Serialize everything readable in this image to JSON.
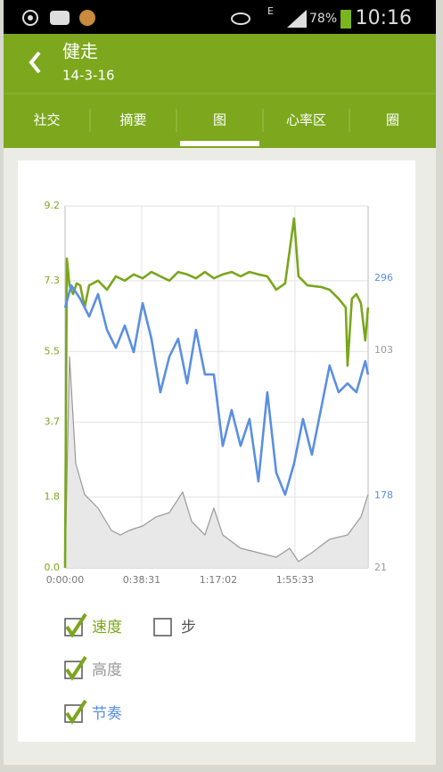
{
  "status_bar": {
    "network": "E",
    "battery": "78%",
    "time": "10:16"
  },
  "header": {
    "title": "健走",
    "subtitle": "14-3-16"
  },
  "tabs": {
    "items": [
      "社交",
      "摘要",
      "图",
      "心率区",
      "圈"
    ],
    "selected": 2
  },
  "chart_data": {
    "type": "line",
    "xlim": [
      0,
      9140
    ],
    "xticks": [
      {
        "value": 0,
        "label": "0:00:00"
      },
      {
        "value": 2311,
        "label": "0:38:31"
      },
      {
        "value": 4622,
        "label": "1:17:02"
      },
      {
        "value": 6933,
        "label": "1:55:33"
      }
    ],
    "ylim": [
      0,
      9.2
    ],
    "yticks": [
      {
        "value": 0,
        "label": "0.0"
      },
      1.8,
      3.7,
      5.5,
      7.3,
      9.2
    ],
    "y2lim": [
      138.8,
      335.2
    ],
    "y2ticks": [
      178,
      296
    ],
    "y3lim": [
      21,
      157.4
    ],
    "y3ticks": [
      21,
      103
    ],
    "grid": true,
    "series": [
      {
        "name": "速度",
        "color": "#7aa61c",
        "checked": true,
        "x": [
          0,
          54,
          134,
          242,
          349,
          457,
          591,
          726,
          994,
          1263,
          1532,
          1800,
          2069,
          2338,
          2606,
          2875,
          3144,
          3412,
          3681,
          3950,
          4219,
          4487,
          4756,
          5025,
          5293,
          5562,
          5831,
          6099,
          6368,
          6637,
          6905,
          7040,
          7309,
          7712,
          7980,
          8249,
          8464,
          8518,
          8652,
          8786,
          8921,
          9055,
          9136
        ],
        "values": [
          0,
          7.86,
          7.18,
          6.96,
          7.23,
          7.18,
          6.62,
          7.18,
          7.3,
          7.07,
          7.41,
          7.3,
          7.46,
          7.36,
          7.52,
          7.41,
          7.3,
          7.52,
          7.46,
          7.36,
          7.52,
          7.36,
          7.46,
          7.52,
          7.41,
          7.52,
          7.46,
          7.41,
          7.07,
          7.23,
          8.88,
          7.41,
          7.18,
          7.14,
          7.07,
          6.84,
          6.62,
          5.14,
          6.84,
          6.96,
          6.73,
          5.78,
          6.62
        ]
      },
      {
        "name": "步",
        "checked": false
      },
      {
        "name": "高度",
        "color": "#999999",
        "checked": true,
        "axis": "y3",
        "fill": "#e8e8e8",
        "x": [
          0,
          134,
          322,
          591,
          994,
          1397,
          1666,
          1934,
          2338,
          2741,
          3144,
          3547,
          3816,
          4219,
          4487,
          4756,
          5293,
          5831,
          6368,
          6771,
          7040,
          7443,
          7980,
          8518,
          8921,
          9136
        ],
        "values": [
          21,
          100.6,
          60.3,
          48.6,
          43.5,
          35.1,
          33.4,
          35.1,
          36.8,
          40.2,
          41.8,
          49.6,
          38.5,
          33.4,
          43.5,
          33.4,
          28.4,
          26.7,
          25,
          28.4,
          23.4,
          26.7,
          31.8,
          33.4,
          40.2,
          48.6
        ]
      },
      {
        "name": "节奏",
        "color": "#5b8fe0",
        "checked": true,
        "axis": "y2",
        "x": [
          0,
          188,
          457,
          726,
          994,
          1263,
          1532,
          1800,
          2069,
          2338,
          2606,
          2875,
          3144,
          3412,
          3681,
          3950,
          4219,
          4487,
          4756,
          5025,
          5293,
          5562,
          5831,
          6099,
          6368,
          6637,
          6905,
          7174,
          7443,
          7712,
          7980,
          8249,
          8518,
          8786,
          9055,
          9136
        ],
        "values": [
          280,
          292.1,
          284.8,
          275.2,
          287.3,
          267.9,
          258.2,
          270.3,
          255.8,
          282.4,
          263.1,
          234.1,
          253.4,
          263.1,
          238.9,
          267.9,
          243.7,
          243.7,
          205,
          224.4,
          205,
          219.6,
          185.7,
          234.1,
          190.5,
          178.5,
          195.4,
          219.6,
          200.2,
          224.4,
          248.6,
          234.1,
          238.9,
          234.1,
          251,
          243.7
        ]
      }
    ]
  }
}
